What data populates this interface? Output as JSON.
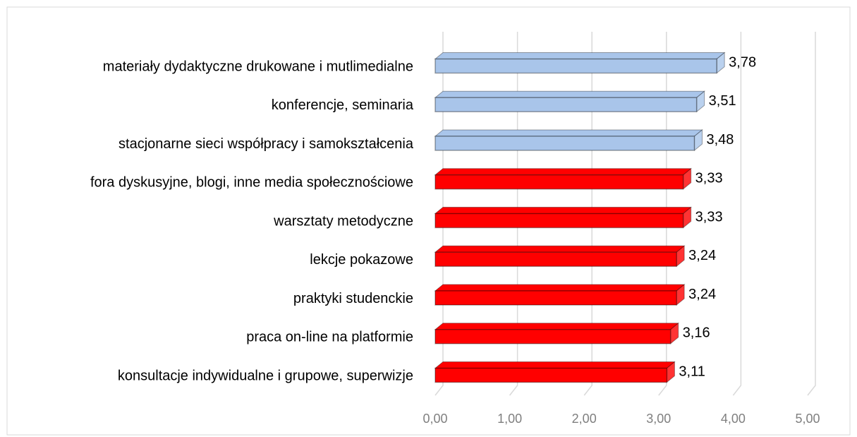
{
  "chart_data": {
    "type": "bar3d_horizontal",
    "categories": [
      "materiały dydaktyczne drukowane i mutlimedialne",
      "konferencje, seminaria",
      "stacjonarne sieci współpracy i samokształcenia",
      "fora dyskusyjne, blogi, inne media społecznościowe",
      "warsztaty metodyczne",
      "lekcje pokazowe",
      "praktyki studenckie",
      "praca on-line na platformie",
      "konsultacje indywidualne i grupowe, superwizje"
    ],
    "values": [
      3.78,
      3.51,
      3.48,
      3.33,
      3.33,
      3.24,
      3.24,
      3.16,
      3.11
    ],
    "value_labels": [
      "3,78",
      "3,51",
      "3,48",
      "3,33",
      "3,33",
      "3,24",
      "3,24",
      "3,16",
      "3,11"
    ],
    "colors": [
      "#a9c5ea",
      "#a9c5ea",
      "#a9c5ea",
      "#ff0000",
      "#ff0000",
      "#ff0000",
      "#ff0000",
      "#ff0000",
      "#ff0000"
    ],
    "xlim": [
      0,
      5
    ],
    "xticks": [
      {
        "value": 0,
        "label": "0,00"
      },
      {
        "value": 1,
        "label": "1,00"
      },
      {
        "value": 2,
        "label": "2,00"
      },
      {
        "value": 3,
        "label": "3,00"
      },
      {
        "value": 4,
        "label": "4,00"
      },
      {
        "value": 5,
        "label": "5,00"
      }
    ],
    "grid": true
  }
}
